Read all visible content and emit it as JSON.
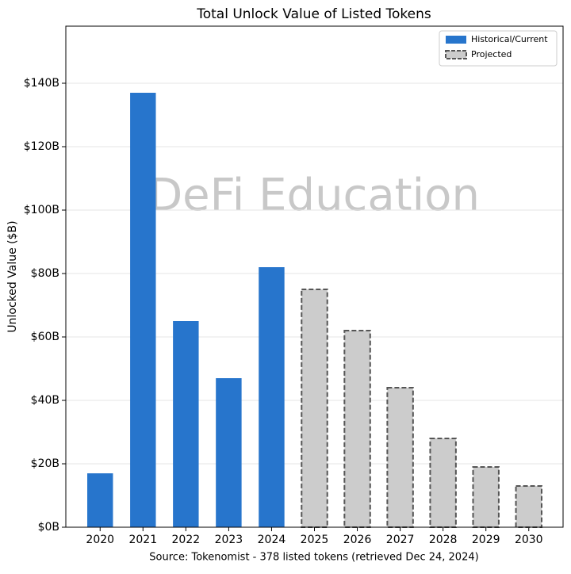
{
  "chart_data": {
    "type": "bar",
    "title": "Total Unlock Value of Listed Tokens",
    "ylabel": "Unlocked Value ($B)",
    "xlabel": "Source: Tokenomist - 378 listed tokens (retrieved Dec 24, 2024)",
    "watermark": "DeFi Education",
    "categories": [
      "2020",
      "2021",
      "2022",
      "2023",
      "2024",
      "2025",
      "2026",
      "2027",
      "2028",
      "2029",
      "2030"
    ],
    "series": [
      {
        "name": "Historical/Current",
        "color": "#2775cc",
        "values": [
          17,
          137,
          65,
          47,
          82,
          null,
          null,
          null,
          null,
          null,
          null
        ]
      },
      {
        "name": "Projected",
        "color": "#cccccc",
        "edgecolor": "#555555",
        "linestyle": "dashed",
        "values": [
          null,
          null,
          null,
          null,
          null,
          75,
          62,
          44,
          28,
          19,
          13
        ]
      }
    ],
    "ylim": [
      0,
      158
    ],
    "yticks": [
      {
        "value": 0,
        "label": "$0B"
      },
      {
        "value": 20,
        "label": "$20B"
      },
      {
        "value": 40,
        "label": "$40B"
      },
      {
        "value": 60,
        "label": "$60B"
      },
      {
        "value": 80,
        "label": "$80B"
      },
      {
        "value": 100,
        "label": "$100B"
      },
      {
        "value": 120,
        "label": "$120B"
      },
      {
        "value": 140,
        "label": "$140B"
      }
    ],
    "grid": true,
    "legend": "upper right"
  }
}
